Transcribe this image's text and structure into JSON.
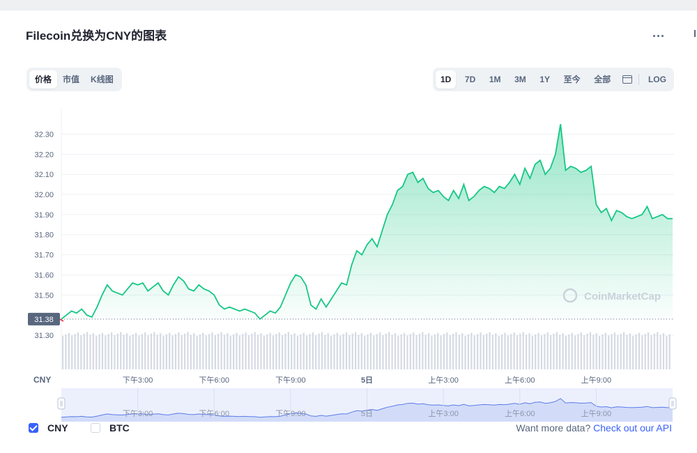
{
  "title": "Filecoin兑换为CNY的图表",
  "more_label": "...",
  "tabs_left": [
    "价格",
    "市值",
    "K线图"
  ],
  "tabs_right": [
    "1D",
    "7D",
    "1M",
    "3M",
    "1Y",
    "至今",
    "全部"
  ],
  "log_label": "LOG",
  "watermark": "CoinMarketCap",
  "checkboxes": {
    "cny": "CNY",
    "btc": "BTC"
  },
  "footer": {
    "prefix": "Want more data?",
    "link": "Check out our API"
  },
  "colors": {
    "line": "#16c784",
    "open_marker": "#ea3943",
    "accent": "#3861fb"
  },
  "chart_data": {
    "type": "area",
    "currency_label": "CNY",
    "y_ticks": [
      "31.30",
      "31.50",
      "31.60",
      "31.70",
      "31.80",
      "31.90",
      "32.00",
      "32.10",
      "32.20",
      "32.30"
    ],
    "ylim": [
      31.13,
      32.43
    ],
    "open_value": 31.38,
    "open_label": "31.38",
    "x_ticks": [
      "下午3:00",
      "下午6:00",
      "下午9:00",
      "5日",
      "上午3:00",
      "上午6:00",
      "上午9:00"
    ],
    "x_tick_hours": [
      3,
      6,
      9,
      12,
      15,
      18,
      21
    ],
    "x_hours": [
      0,
      0.2,
      0.4,
      0.6,
      0.8,
      1,
      1.2,
      1.4,
      1.6,
      1.8,
      2,
      2.2,
      2.4,
      2.6,
      2.8,
      3,
      3.2,
      3.4,
      3.6,
      3.8,
      4,
      4.2,
      4.4,
      4.6,
      4.8,
      5,
      5.2,
      5.4,
      5.6,
      5.8,
      6,
      6.2,
      6.4,
      6.6,
      6.8,
      7,
      7.2,
      7.4,
      7.6,
      7.8,
      8,
      8.2,
      8.4,
      8.6,
      8.8,
      9,
      9.2,
      9.4,
      9.6,
      9.8,
      10,
      10.2,
      10.4,
      10.6,
      10.8,
      11,
      11.2,
      11.4,
      11.6,
      11.8,
      12,
      12.2,
      12.4,
      12.6,
      12.8,
      13,
      13.2,
      13.4,
      13.6,
      13.8,
      14,
      14.2,
      14.4,
      14.6,
      14.8,
      15,
      15.2,
      15.4,
      15.6,
      15.8,
      16,
      16.2,
      16.4,
      16.6,
      16.8,
      17,
      17.2,
      17.4,
      17.6,
      17.8,
      18,
      18.2,
      18.4,
      18.6,
      18.8,
      19,
      19.2,
      19.4,
      19.6,
      19.8,
      20,
      20.2,
      20.4,
      20.6,
      20.8,
      21,
      21.2,
      21.4,
      21.6,
      21.8,
      22,
      22.2,
      22.4,
      22.6,
      22.8,
      23,
      23.2,
      23.4,
      23.6,
      23.8,
      24
    ],
    "values": [
      31.38,
      31.4,
      31.42,
      31.41,
      31.43,
      31.4,
      31.39,
      31.44,
      31.5,
      31.55,
      31.52,
      31.51,
      31.5,
      31.53,
      31.56,
      31.55,
      31.56,
      31.52,
      31.54,
      31.56,
      31.52,
      31.5,
      31.55,
      31.59,
      31.57,
      31.53,
      31.52,
      31.55,
      31.53,
      31.52,
      31.5,
      31.45,
      31.43,
      31.44,
      31.43,
      31.42,
      31.43,
      31.42,
      31.41,
      31.38,
      31.4,
      31.42,
      31.41,
      31.44,
      31.5,
      31.56,
      31.6,
      31.59,
      31.55,
      31.45,
      31.43,
      31.48,
      31.44,
      31.48,
      31.52,
      31.56,
      31.55,
      31.65,
      31.72,
      31.7,
      31.75,
      31.78,
      31.74,
      31.82,
      31.9,
      31.95,
      32.02,
      32.04,
      32.1,
      32.11,
      32.06,
      32.08,
      32.03,
      32.01,
      32.02,
      31.99,
      31.97,
      32.02,
      31.98,
      32.05,
      31.97,
      31.99,
      32.02,
      32.04,
      32.03,
      32.01,
      32.04,
      32.03,
      32.06,
      32.1,
      32.05,
      32.13,
      32.08,
      32.15,
      32.17,
      32.1,
      32.13,
      32.2,
      32.35,
      32.12,
      32.14,
      32.13,
      32.11,
      32.12,
      32.14,
      31.95,
      31.91,
      31.93,
      31.87,
      31.92,
      31.91,
      31.89,
      31.88,
      31.89,
      31.9,
      31.94,
      31.88,
      31.89,
      31.9,
      31.88,
      31.88
    ],
    "grid": "horizontal",
    "legend": "none"
  }
}
